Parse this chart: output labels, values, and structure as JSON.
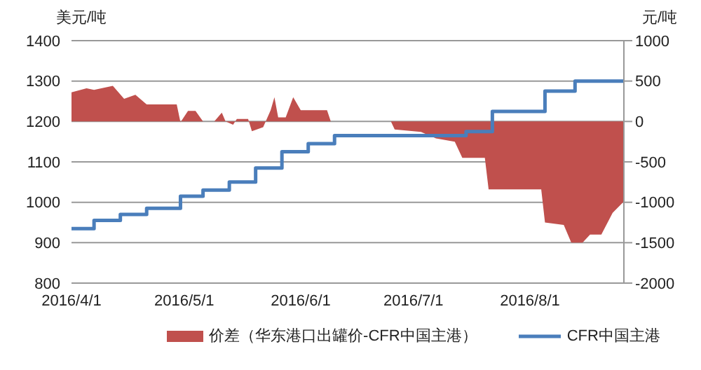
{
  "chart_data": {
    "type": "area",
    "ylabel": "美元/吨",
    "y2label": "元/吨",
    "xlim": [
      "2016-04-01",
      "2016-08-26"
    ],
    "xticks": [
      {
        "value": "2016-04-01",
        "label": "2016/4/1"
      },
      {
        "value": "2016-05-01",
        "label": "2016/5/1"
      },
      {
        "value": "2016-06-01",
        "label": "2016/6/1"
      },
      {
        "value": "2016-07-01",
        "label": "2016/7/1"
      },
      {
        "value": "2016-08-01",
        "label": "2016/8/1"
      }
    ],
    "ylim": [
      800,
      1400
    ],
    "yticks": [
      800,
      900,
      1000,
      1100,
      1200,
      1300,
      1400
    ],
    "y2lim": [
      -2000,
      1000
    ],
    "y2ticks": [
      -2000,
      -1500,
      -1000,
      -500,
      0,
      500,
      1000
    ],
    "grid": "y",
    "legend": "bottom",
    "series": [
      {
        "name": "价差（华东港口出罐价-CFR中国主港）",
        "axis": "y2",
        "color": "#c0504d",
        "x": [
          "2016-04-01",
          "2016-04-05",
          "2016-04-07",
          "2016-04-12",
          "2016-04-15",
          "2016-04-18",
          "2016-04-21",
          "2016-04-29",
          "2016-04-30",
          "2016-05-02",
          "2016-05-04",
          "2016-05-06",
          "2016-05-09",
          "2016-05-11",
          "2016-05-12",
          "2016-05-14",
          "2016-05-15",
          "2016-05-18",
          "2016-05-19",
          "2016-05-22",
          "2016-05-24",
          "2016-05-25",
          "2016-05-26",
          "2016-05-28",
          "2016-05-30",
          "2016-06-01",
          "2016-06-08",
          "2016-06-09",
          "2016-06-25",
          "2016-06-26",
          "2016-07-03",
          "2016-07-07",
          "2016-07-12",
          "2016-07-14",
          "2016-07-20",
          "2016-07-21",
          "2016-08-04",
          "2016-08-05",
          "2016-08-10",
          "2016-08-12",
          "2016-08-15",
          "2016-08-17",
          "2016-08-20",
          "2016-08-23",
          "2016-08-26"
        ],
        "values": [
          360,
          410,
          390,
          440,
          280,
          330,
          210,
          210,
          -10,
          130,
          130,
          0,
          0,
          110,
          0,
          -40,
          30,
          30,
          -120,
          -70,
          140,
          300,
          50,
          50,
          300,
          140,
          140,
          0,
          0,
          -100,
          -130,
          -210,
          -250,
          -450,
          -450,
          -840,
          -840,
          -1250,
          -1280,
          -1500,
          -1500,
          -1400,
          -1400,
          -1130,
          -990
        ]
      },
      {
        "name": "CFR中国主港",
        "type": "step",
        "color": "#4a7ebb",
        "x": [
          "2016-04-01",
          "2016-04-07",
          "2016-04-14",
          "2016-04-21",
          "2016-04-30",
          "2016-05-06",
          "2016-05-13",
          "2016-05-20",
          "2016-05-27",
          "2016-06-03",
          "2016-06-10",
          "2016-07-15",
          "2016-07-22",
          "2016-08-05",
          "2016-08-13",
          "2016-08-26"
        ],
        "values": [
          935,
          955,
          970,
          985,
          1015,
          1030,
          1050,
          1085,
          1125,
          1145,
          1165,
          1175,
          1225,
          1275,
          1300,
          1300
        ]
      }
    ]
  }
}
